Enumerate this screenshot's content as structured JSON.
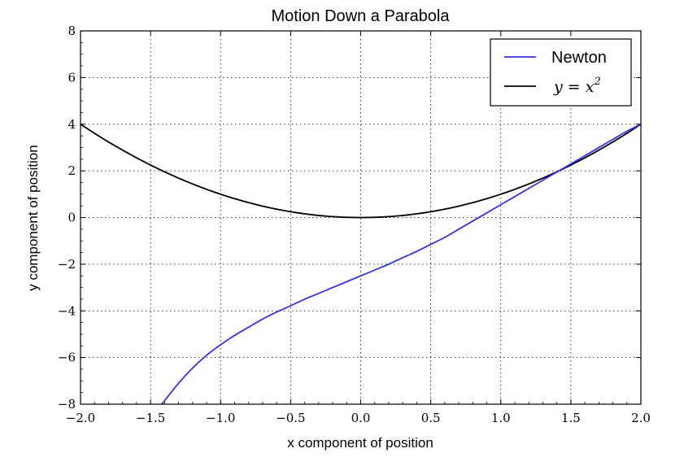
{
  "chart_data": {
    "type": "line",
    "title": "Motion Down a Parabola",
    "xlabel": "x component of position",
    "ylabel": "y component of position",
    "xlim": [
      -2.0,
      2.0
    ],
    "ylim": [
      -8,
      8
    ],
    "xticks": [
      -2.0,
      -1.5,
      -1.0,
      -0.5,
      0.0,
      0.5,
      1.0,
      1.5,
      2.0
    ],
    "xtick_labels": [
      "−2.0",
      "−1.5",
      "−1.0",
      "−0.5",
      "0.0",
      "0.5",
      "1.0",
      "1.5",
      "2.0"
    ],
    "yticks": [
      -8,
      -6,
      -4,
      -2,
      0,
      2,
      4,
      6,
      8
    ],
    "ytick_labels": [
      "−8",
      "−6",
      "−4",
      "−2",
      "0",
      "2",
      "4",
      "6",
      "8"
    ],
    "grid": true,
    "legend_position": "top-right",
    "series": [
      {
        "name": "Newton",
        "color": "#3333ee",
        "x": [
          -1.42,
          -1.3,
          -1.2,
          -1.1,
          -1.0,
          -0.9,
          -0.8,
          -0.7,
          -0.6,
          -0.5,
          -0.4,
          -0.3,
          -0.2,
          -0.1,
          0.0,
          0.1,
          0.2,
          0.3,
          0.4,
          0.5,
          0.6,
          0.7,
          0.8,
          0.9,
          1.0,
          1.1,
          1.2,
          1.3,
          1.4,
          1.5,
          1.6,
          1.7,
          1.8,
          1.9,
          2.0
        ],
        "y": [
          -8.0,
          -7.1,
          -6.45,
          -5.9,
          -5.45,
          -5.05,
          -4.7,
          -4.35,
          -4.05,
          -3.78,
          -3.5,
          -3.25,
          -3.0,
          -2.75,
          -2.5,
          -2.25,
          -2.0,
          -1.72,
          -1.45,
          -1.15,
          -0.85,
          -0.5,
          -0.15,
          0.2,
          0.55,
          0.9,
          1.25,
          1.6,
          1.95,
          2.3,
          2.65,
          3.0,
          3.35,
          3.7,
          4.0
        ]
      },
      {
        "name": "y = x²",
        "color": "#000000",
        "function": "x^2",
        "x_range": [
          -2.0,
          2.0
        ]
      }
    ]
  }
}
